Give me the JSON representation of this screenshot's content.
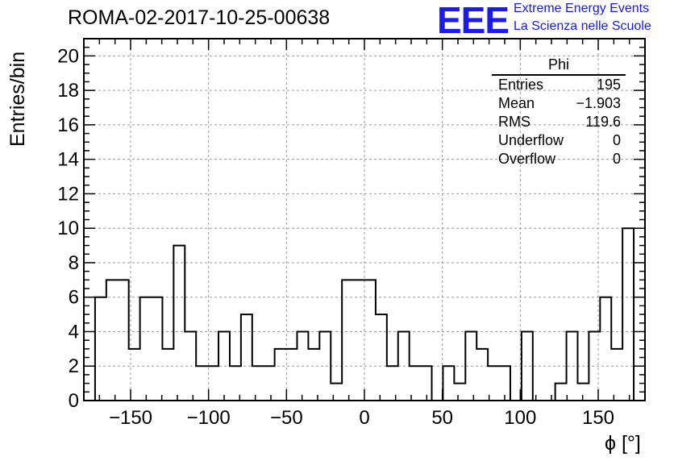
{
  "header": {
    "run_title": "ROMA-02-2017-10-25-00638",
    "logo_text": "EEE",
    "logo_line1": "Extreme Energy Events",
    "logo_line2": "La Scienza nelle Scuole",
    "logo_color": "#1a1aee"
  },
  "stats": {
    "title": "Phi",
    "rows": [
      {
        "label": "Entries",
        "value": "195"
      },
      {
        "label": "Mean",
        "value": "−1.903"
      },
      {
        "label": "RMS",
        "value": "119.6"
      },
      {
        "label": "Underflow",
        "value": "0"
      },
      {
        "label": "Overflow",
        "value": "0"
      }
    ]
  },
  "chart_data": {
    "type": "histogram",
    "ylabel": "Entries/bin",
    "xlabel": "ϕ [°]",
    "xlim": [
      -180,
      180
    ],
    "ylim": [
      0,
      21
    ],
    "grid": true,
    "bin_width": 7.2,
    "x_ticks": [
      -150,
      -100,
      -50,
      0,
      50,
      100,
      150
    ],
    "x_tick_labels": [
      "−150",
      "−100",
      "−50",
      "0",
      "50",
      "100",
      "150"
    ],
    "y_ticks": [
      0,
      2,
      4,
      6,
      8,
      10,
      12,
      14,
      16,
      18,
      20
    ],
    "y_tick_labels": [
      "0",
      "2",
      "4",
      "6",
      "8",
      "10",
      "12",
      "14",
      "16",
      "18",
      "20"
    ],
    "bins": [
      {
        "x": -172.8,
        "value": 6
      },
      {
        "x": -165.6,
        "value": 7
      },
      {
        "x": -158.4,
        "value": 7
      },
      {
        "x": -151.2,
        "value": 3
      },
      {
        "x": -144.0,
        "value": 6
      },
      {
        "x": -136.8,
        "value": 6
      },
      {
        "x": -129.6,
        "value": 3
      },
      {
        "x": -122.4,
        "value": 9
      },
      {
        "x": -115.2,
        "value": 4
      },
      {
        "x": -108.0,
        "value": 2
      },
      {
        "x": -100.8,
        "value": 2
      },
      {
        "x": -93.6,
        "value": 4
      },
      {
        "x": -86.4,
        "value": 2
      },
      {
        "x": -79.2,
        "value": 5
      },
      {
        "x": -72.0,
        "value": 2
      },
      {
        "x": -64.8,
        "value": 2
      },
      {
        "x": -57.6,
        "value": 3
      },
      {
        "x": -50.4,
        "value": 3
      },
      {
        "x": -43.2,
        "value": 4
      },
      {
        "x": -36.0,
        "value": 3
      },
      {
        "x": -28.8,
        "value": 4
      },
      {
        "x": -21.6,
        "value": 1
      },
      {
        "x": -14.4,
        "value": 7
      },
      {
        "x": -7.2,
        "value": 7
      },
      {
        "x": 0.0,
        "value": 7
      },
      {
        "x": 7.2,
        "value": 5
      },
      {
        "x": 14.4,
        "value": 2
      },
      {
        "x": 21.6,
        "value": 4
      },
      {
        "x": 28.8,
        "value": 2
      },
      {
        "x": 36.0,
        "value": 2
      },
      {
        "x": 43.2,
        "value": 0
      },
      {
        "x": 50.4,
        "value": 2
      },
      {
        "x": 57.6,
        "value": 1
      },
      {
        "x": 64.8,
        "value": 4
      },
      {
        "x": 72.0,
        "value": 3
      },
      {
        "x": 79.2,
        "value": 2
      },
      {
        "x": 86.4,
        "value": 2
      },
      {
        "x": 93.6,
        "value": 0
      },
      {
        "x": 100.8,
        "value": 4
      },
      {
        "x": 108.0,
        "value": 0
      },
      {
        "x": 115.2,
        "value": 0
      },
      {
        "x": 122.4,
        "value": 1
      },
      {
        "x": 129.6,
        "value": 4
      },
      {
        "x": 136.8,
        "value": 1
      },
      {
        "x": 144.0,
        "value": 4
      },
      {
        "x": 151.2,
        "value": 6
      },
      {
        "x": 158.4,
        "value": 3
      },
      {
        "x": 165.6,
        "value": 10
      }
    ]
  }
}
